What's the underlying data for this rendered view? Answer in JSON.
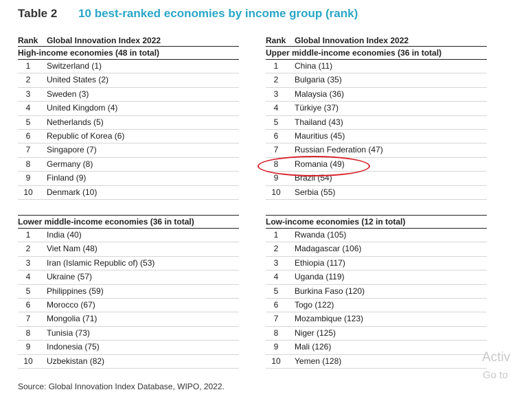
{
  "table_label": "Table 2",
  "table_title": "10 best-ranked economies by income group (rank)",
  "column_headers": {
    "rank": "Rank",
    "index": "Global Innovation Index 2022"
  },
  "groups": [
    {
      "title": "High-income economies (48 in total)",
      "rows": [
        {
          "rank": "1",
          "economy": "Switzerland (1)"
        },
        {
          "rank": "2",
          "economy": "United States (2)"
        },
        {
          "rank": "3",
          "economy": "Sweden (3)"
        },
        {
          "rank": "4",
          "economy": "United Kingdom (4)"
        },
        {
          "rank": "5",
          "economy": "Netherlands (5)"
        },
        {
          "rank": "6",
          "economy": "Republic of Korea (6)"
        },
        {
          "rank": "7",
          "economy": "Singapore (7)"
        },
        {
          "rank": "8",
          "economy": "Germany (8)"
        },
        {
          "rank": "9",
          "economy": "Finland (9)"
        },
        {
          "rank": "10",
          "economy": "Denmark (10)"
        }
      ]
    },
    {
      "title": "Upper middle-income economies (36 in total)",
      "rows": [
        {
          "rank": "1",
          "economy": "China (11)"
        },
        {
          "rank": "2",
          "economy": "Bulgaria (35)"
        },
        {
          "rank": "3",
          "economy": "Malaysia (36)"
        },
        {
          "rank": "4",
          "economy": "Türkiye (37)"
        },
        {
          "rank": "5",
          "economy": "Thailand (43)"
        },
        {
          "rank": "6",
          "economy": "Mauritius (45)"
        },
        {
          "rank": "7",
          "economy": "Russian Federation (47)"
        },
        {
          "rank": "8",
          "economy": "Romania (49)"
        },
        {
          "rank": "9",
          "economy": "Brazil (54)"
        },
        {
          "rank": "10",
          "economy": "Serbia (55)"
        }
      ]
    },
    {
      "title": "Lower middle-income economies (36 in total)",
      "rows": [
        {
          "rank": "1",
          "economy": "India (40)"
        },
        {
          "rank": "2",
          "economy": "Viet Nam (48)"
        },
        {
          "rank": "3",
          "economy": "Iran (Islamic Republic of) (53)"
        },
        {
          "rank": "4",
          "economy": "Ukraine (57)"
        },
        {
          "rank": "5",
          "economy": "Philippines (59)"
        },
        {
          "rank": "6",
          "economy": "Morocco (67)"
        },
        {
          "rank": "7",
          "economy": "Mongolia (71)"
        },
        {
          "rank": "8",
          "economy": "Tunisia (73)"
        },
        {
          "rank": "9",
          "economy": "Indonesia (75)"
        },
        {
          "rank": "10",
          "economy": "Uzbekistan (82)"
        }
      ]
    },
    {
      "title": "Low-income economies (12 in total)",
      "rows": [
        {
          "rank": "1",
          "economy": "Rwanda (105)"
        },
        {
          "rank": "2",
          "economy": "Madagascar (106)"
        },
        {
          "rank": "3",
          "economy": "Ethiopia (117)"
        },
        {
          "rank": "4",
          "economy": "Uganda (119)"
        },
        {
          "rank": "5",
          "economy": "Burkina Faso (120)"
        },
        {
          "rank": "6",
          "economy": "Togo (122)"
        },
        {
          "rank": "7",
          "economy": "Mozambique (123)"
        },
        {
          "rank": "8",
          "economy": "Niger (125)"
        },
        {
          "rank": "9",
          "economy": "Mali (126)"
        },
        {
          "rank": "10",
          "economy": "Yemen (128)"
        }
      ]
    }
  ],
  "source": "Source: Global Innovation Index Database, WIPO, 2022.",
  "highlight_color": "#d6222a",
  "title_color": "#2aa6c8",
  "watermark": {
    "line1": "Activ",
    "line2": "Go to"
  }
}
